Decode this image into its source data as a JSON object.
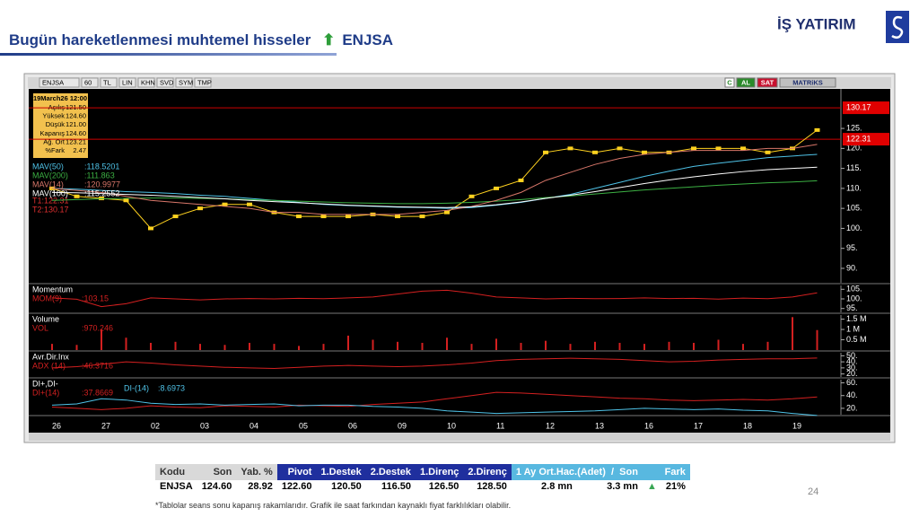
{
  "header": {
    "title": "Bugün hareketlenmesi muhtemel hisseler",
    "stock": "ENJSA",
    "logo": "İŞ YATIRIM"
  },
  "toolbar": {
    "left": [
      "ENJSA",
      "60",
      "TL",
      "LIN",
      "KHN",
      "SVD",
      "SYM",
      "TMP"
    ],
    "right": [
      "C",
      "AL",
      "SAT",
      "MATRiKS"
    ]
  },
  "info_box": {
    "date": "19March26 12:00",
    "rows": [
      [
        "Açılış",
        "121.50"
      ],
      [
        "Yüksek",
        "124.60"
      ],
      [
        "Düşük",
        "121.00"
      ],
      [
        "Kapanış",
        "124.60"
      ],
      [
        "Ağ. Ort",
        "123.21"
      ],
      [
        "%Fark",
        "2.47"
      ]
    ]
  },
  "chart_data": [
    {
      "type": "line",
      "categories": [
        "26",
        null,
        "27",
        null,
        "02",
        null,
        "03",
        null,
        "04",
        null,
        "05",
        null,
        "06",
        null,
        "09",
        null,
        "10",
        null,
        "11",
        null,
        "12",
        null,
        "13",
        null,
        "16",
        null,
        "17",
        null,
        "18",
        null,
        "19",
        null
      ],
      "ylim": [
        86.4,
        134.9
      ],
      "yticks": [
        {
          "value": 90,
          "label": "90."
        },
        {
          "value": 95,
          "label": "95."
        },
        {
          "value": 100,
          "label": "100."
        },
        {
          "value": 105,
          "label": "105."
        },
        {
          "value": 110,
          "label": "110."
        },
        {
          "value": 115,
          "label": "115."
        },
        {
          "value": 120,
          "label": "120."
        },
        {
          "value": 125,
          "label": "125."
        }
      ],
      "series": [
        {
          "name": "ENJSA",
          "color": "#ffd21f",
          "markers": true,
          "values": [
            110,
            108,
            107.5,
            107,
            100,
            103,
            105,
            106,
            106,
            104,
            103,
            103,
            103,
            103.5,
            103,
            103,
            104,
            108,
            110,
            112,
            119,
            120,
            119,
            120,
            119,
            119,
            120,
            120,
            120,
            119,
            120,
            124.6
          ]
        },
        {
          "name": "MAV(50)",
          "color": "#4fc3e8",
          "last_label": ":118.5201",
          "values": [
            110,
            109.8,
            109.5,
            109.2,
            109,
            108.7,
            108.3,
            108,
            107.5,
            107,
            106.5,
            106,
            105.7,
            105.5,
            105.3,
            105.2,
            105,
            105.2,
            105.8,
            106.5,
            107.5,
            108.5,
            110,
            111.5,
            113,
            114.3,
            115.5,
            116.3,
            117,
            117.7,
            118.1,
            118.5
          ]
        },
        {
          "name": "MAV(200)",
          "color": "#3cb043",
          "last_label": ":111.863",
          "values": [
            107,
            107.2,
            107.4,
            107.5,
            107.6,
            107.6,
            107.5,
            107.4,
            107.2,
            107,
            106.8,
            106.6,
            106.4,
            106.3,
            106.2,
            106.2,
            106.3,
            106.5,
            106.8,
            107.2,
            107.7,
            108.1,
            108.6,
            109.1,
            109.6,
            110,
            110.4,
            110.8,
            111.1,
            111.4,
            111.6,
            111.9
          ]
        },
        {
          "name": "MAV(14)",
          "color": "#d9776a",
          "last_label": ":120.9977",
          "values": [
            110,
            109.5,
            109,
            108,
            107,
            106.5,
            106,
            105.5,
            105,
            104,
            104,
            103.5,
            103.5,
            103.5,
            103.5,
            104,
            104.5,
            105.5,
            107,
            109,
            112,
            114,
            116,
            117.5,
            118.5,
            119,
            119.5,
            119.5,
            119.5,
            120,
            120,
            121
          ]
        },
        {
          "name": "MAV(100)",
          "color": "#ffffff",
          "last_label": ":115.2552",
          "values": [
            109,
            108.9,
            108.7,
            108.5,
            108.3,
            108,
            107.7,
            107.4,
            107,
            106.7,
            106.4,
            106.1,
            105.8,
            105.6,
            105.4,
            105.3,
            105.2,
            105.4,
            105.9,
            106.6,
            107.5,
            108.3,
            109.2,
            110.2,
            111.2,
            112.1,
            112.9,
            113.6,
            114.2,
            114.7,
            115,
            115.3
          ]
        }
      ],
      "levels": [
        {
          "label": "T1:122.31",
          "value": 122.31
        },
        {
          "label": "T2:130.17",
          "value": 130.17
        }
      ]
    },
    {
      "type": "line",
      "title": "Momentum",
      "ylim": [
        93,
        107
      ],
      "yticks": [
        {
          "value": 95,
          "label": "95."
        },
        {
          "value": 100,
          "label": "100."
        },
        {
          "value": 105,
          "label": "105."
        }
      ],
      "series": [
        {
          "name": "MOM(9)",
          "color": "#d42020",
          "last_label": ":103.15",
          "values": [
            100.5,
            99.8,
            96,
            97.5,
            100.5,
            100,
            99.5,
            100,
            100.2,
            100,
            100.3,
            100.1,
            100.5,
            101,
            102.5,
            104,
            104.5,
            103,
            101,
            100.5,
            100,
            100.3,
            100.1,
            100.2,
            100.5,
            100.2,
            100.3,
            99.9,
            100.4,
            100.1,
            101,
            103.15
          ]
        }
      ]
    },
    {
      "type": "bar",
      "title": "Volume",
      "ylim": [
        0,
        1700000
      ],
      "yticks": [
        {
          "value": 500000,
          "label": "0.5 M"
        },
        {
          "value": 1000000,
          "label": "1 M"
        },
        {
          "value": 1500000,
          "label": "1.5 M"
        }
      ],
      "series": [
        {
          "name": "VOL",
          "color": "#d42020",
          "last_label": ":970.246",
          "values": [
            300000,
            250000,
            1000000,
            600000,
            350000,
            400000,
            300000,
            250000,
            350000,
            300000,
            200000,
            300000,
            700000,
            500000,
            400000,
            350000,
            600000,
            300000,
            550000,
            350000,
            450000,
            300000,
            400000,
            350000,
            300000,
            400000,
            350000,
            500000,
            300000,
            400000,
            1600000,
            970246
          ]
        }
      ]
    },
    {
      "type": "line",
      "title": "Avr.Dir.Inx",
      "ylim": [
        15,
        55
      ],
      "yticks": [
        {
          "value": 20,
          "label": "20."
        },
        {
          "value": 30,
          "label": "30."
        },
        {
          "value": 40,
          "label": "40."
        },
        {
          "value": 50,
          "label": "50."
        }
      ],
      "series": [
        {
          "name": "ADX (14)",
          "color": "#d42020",
          "last_label": ":46.3716",
          "values": [
            30,
            32,
            36,
            40,
            38,
            35,
            33,
            31,
            30,
            29,
            31,
            33,
            34,
            33,
            32,
            33,
            35,
            38,
            42,
            44,
            45,
            46,
            45,
            44,
            42,
            40,
            41,
            43,
            44,
            45,
            45,
            46.3716
          ]
        }
      ]
    },
    {
      "type": "line",
      "title": "DI+,DI-",
      "ylim": [
        10,
        65
      ],
      "yticks": [
        {
          "value": 20,
          "label": "20."
        },
        {
          "value": 40,
          "label": "40."
        },
        {
          "value": 60,
          "label": "60."
        }
      ],
      "series": [
        {
          "name": "DI+(14)",
          "color": "#d42020",
          "last_label": ":37.8669",
          "values": [
            22,
            20,
            18,
            20,
            24,
            22,
            21,
            24,
            23,
            22,
            25,
            24,
            23,
            26,
            28,
            30,
            35,
            40,
            45,
            44,
            42,
            40,
            38,
            36,
            35,
            33,
            32,
            33,
            34,
            33,
            35,
            37.8669
          ]
        },
        {
          "name": "DI-(14)",
          "color": "#4fc3e8",
          "last_label": ":8.6973",
          "values": [
            25,
            27,
            35,
            33,
            28,
            26,
            27,
            25,
            26,
            27,
            24,
            25,
            25,
            23,
            22,
            20,
            16,
            14,
            12,
            13,
            14,
            15,
            16,
            18,
            20,
            19,
            18,
            19,
            17,
            16,
            12,
            8.6973
          ]
        }
      ]
    }
  ],
  "table": {
    "headers": [
      "Kodu",
      "Son",
      "Yab. %",
      "Pivot",
      "1.Destek",
      "2.Destek",
      "1.Direnç",
      "2.Direnç",
      "1 Ay Ort.Hac.(Adet)  /  Son",
      "Fark"
    ],
    "row": [
      "ENJSA",
      "124.60",
      "28.92",
      "122.60",
      "120.50",
      "116.50",
      "126.50",
      "128.50",
      "2.8 mn",
      "3.3 mn",
      "21%"
    ]
  },
  "footnote": "*Tablolar seans sonu kapanış rakamlarıdır. Grafik ile saat farkından kaynaklı fiyat farklılıkları olabilir.",
  "page_number": "24"
}
